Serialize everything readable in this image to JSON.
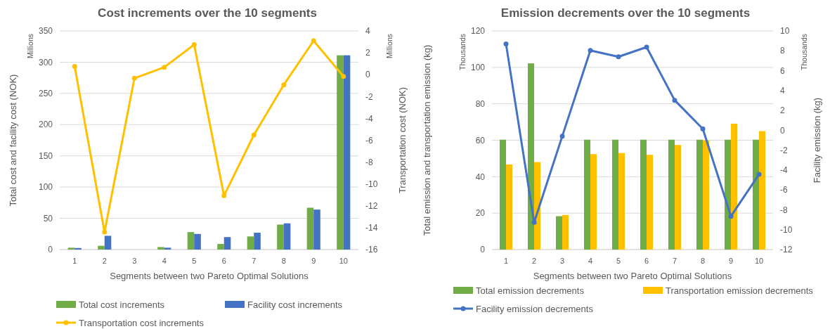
{
  "chart_data": [
    {
      "type": "bar",
      "title": "Cost increments over the 10 segments",
      "xlabel": "Segments between two Pareto Optimal Solutions",
      "ylabel": "Total cost and facility cost (NOK)",
      "y2label": "Transportation cost (NOK)",
      "annotations": [
        "Millions",
        "Millions"
      ],
      "categories": [
        "1",
        "2",
        "3",
        "4",
        "5",
        "6",
        "7",
        "8",
        "9",
        "10"
      ],
      "series": [
        {
          "name": "Total cost increments",
          "color": "#70ad47",
          "values": [
            3,
            6,
            0,
            4,
            28,
            9,
            21,
            40,
            67,
            311
          ]
        },
        {
          "name": "Facility cost increments",
          "color": "#4472c4",
          "values": [
            2.5,
            22,
            0,
            3,
            25,
            20,
            27,
            42,
            64,
            311
          ]
        },
        {
          "name": "Transportation cost increments",
          "type": "line",
          "axis": "y2",
          "color": "#ffc000",
          "values": [
            0.75,
            -14.4,
            -0.33,
            0.68,
            2.75,
            -11.07,
            -5.52,
            -0.93,
            3.1,
            -0.16
          ]
        }
      ],
      "ylim": [
        0,
        350
      ],
      "yticks": [
        0,
        50,
        100,
        150,
        200,
        250,
        300,
        350
      ],
      "y2lim": [
        -16,
        4
      ],
      "y2ticks": [
        -16,
        -14,
        -12,
        -10,
        -8,
        -6,
        -4,
        -2,
        0,
        2,
        4
      ],
      "grid": "y",
      "legend": "bottom",
      "marker": "circle"
    },
    {
      "type": "bar",
      "title": "Emission decrements over the 10 segments",
      "xlabel": "Segments between two Pareto Optimal Solutions",
      "ylabel": "Total emission and transportation emission (kg)",
      "y2label": "Facility emission (kg)",
      "annotations": [
        "Thousands",
        "Thousands"
      ],
      "categories": [
        "1",
        "2",
        "3",
        "4",
        "5",
        "6",
        "7",
        "8",
        "9",
        "10"
      ],
      "series": [
        {
          "name": "Total emission decrements",
          "color": "#70ad47",
          "values": [
            60.3,
            102.2,
            18.3,
            60.3,
            60.3,
            60.3,
            60.3,
            60.3,
            60.3,
            60.3
          ]
        },
        {
          "name": "Transportation emission decrements",
          "color": "#ffc000",
          "values": [
            46.7,
            48,
            19,
            52.4,
            53,
            52,
            57.4,
            60,
            69.1,
            65
          ]
        },
        {
          "name": "Facility emission decrements",
          "type": "line",
          "axis": "y2",
          "color": "#4472c4",
          "values": [
            8.7,
            -9.26,
            -0.6,
            8.04,
            7.4,
            8.37,
            3.02,
            0.15,
            -8.65,
            -4.43
          ]
        }
      ],
      "ylim": [
        0,
        120
      ],
      "yticks": [
        0,
        20,
        40,
        60,
        80,
        100,
        120
      ],
      "y2lim": [
        -12,
        10
      ],
      "y2ticks": [
        -12,
        -10,
        -8,
        -6,
        -4,
        -2,
        0,
        2,
        4,
        6,
        8,
        10
      ],
      "grid": "y",
      "legend": "bottom",
      "marker": "circle"
    }
  ]
}
